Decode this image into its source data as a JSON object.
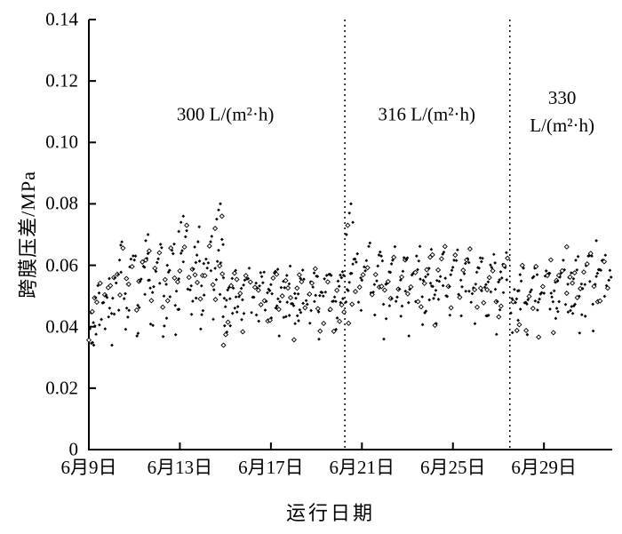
{
  "chart_data": {
    "type": "scatter",
    "title": "",
    "xlabel": "运行日期",
    "ylabel": "跨膜压差/MPa",
    "ylim": [
      0,
      0.14
    ],
    "yticks": [
      0,
      0.02,
      0.04,
      0.06,
      0.08,
      0.1,
      0.12,
      0.14
    ],
    "ytick_labels": [
      "0",
      "0.02",
      "0.04",
      "0.06",
      "0.08",
      "0.10",
      "0.12",
      "0.14"
    ],
    "xticks_days": [
      0,
      4,
      8,
      12,
      16,
      20
    ],
    "xtick_labels": [
      "6月9日",
      "6月13日",
      "6月17日",
      "6月21日",
      "6月25日",
      "6月29日"
    ],
    "x_range_days": [
      0,
      23
    ],
    "grid": false,
    "legend": "none",
    "marker_color": "#000000",
    "flux_dividers": [
      {
        "day": 11.25,
        "style": "dotted"
      },
      {
        "day": 18.5,
        "style": "dotted"
      }
    ],
    "annotations": [
      {
        "name": "flux-300",
        "lines": [
          "300 L/(m²·h)"
        ],
        "day": 6.0,
        "value": 0.109
      },
      {
        "name": "flux-316",
        "lines": [
          "316 L/(m²·h)"
        ],
        "day": 14.85,
        "value": 0.109
      },
      {
        "name": "flux-330",
        "lines": [
          "330",
          "L/(m²·h)"
        ],
        "day": 20.8,
        "value": 0.11
      }
    ],
    "series": [
      {
        "name": "跨膜压差",
        "marker": "diamond",
        "color": "#000000",
        "points_per_day": 20,
        "noise_seed": 7,
        "segments": [
          {
            "from": 0.0,
            "to": 1.0,
            "base_start": 0.037,
            "base_end": 0.046,
            "amp_start": 0.01,
            "amp_end": 0.013,
            "cycle": 0.5,
            "noise": 0.004
          },
          {
            "from": 1.0,
            "to": 5.9,
            "base_start": 0.047,
            "base_end": 0.047,
            "amp_start": 0.02,
            "amp_end": 0.023,
            "cycle": 0.55,
            "noise": 0.004
          },
          {
            "from": 5.9,
            "to": 11.25,
            "base_start": 0.045,
            "base_end": 0.047,
            "amp_start": 0.012,
            "amp_end": 0.012,
            "cycle": 0.6,
            "noise": 0.003
          },
          {
            "from": 11.3,
            "to": 18.45,
            "base_start": 0.049,
            "base_end": 0.048,
            "amp_start": 0.017,
            "amp_end": 0.016,
            "cycle": 0.55,
            "noise": 0.003
          },
          {
            "from": 18.55,
            "to": 23.0,
            "base_start": 0.045,
            "base_end": 0.051,
            "amp_start": 0.013,
            "amp_end": 0.015,
            "cycle": 0.6,
            "noise": 0.003
          }
        ],
        "spike_points": [
          [
            5.55,
            0.072
          ],
          [
            5.62,
            0.075
          ],
          [
            5.7,
            0.078
          ],
          [
            5.78,
            0.08
          ],
          [
            5.85,
            0.076
          ],
          [
            3.95,
            0.071
          ],
          [
            4.05,
            0.074
          ],
          [
            4.15,
            0.076
          ],
          [
            4.3,
            0.073
          ],
          [
            2.5,
            0.068
          ],
          [
            2.6,
            0.07
          ],
          [
            11.32,
            0.07
          ],
          [
            11.38,
            0.073
          ],
          [
            11.45,
            0.077
          ],
          [
            11.52,
            0.08
          ],
          [
            11.6,
            0.074
          ],
          [
            21.0,
            0.066
          ],
          [
            22.3,
            0.068
          ]
        ]
      }
    ]
  }
}
